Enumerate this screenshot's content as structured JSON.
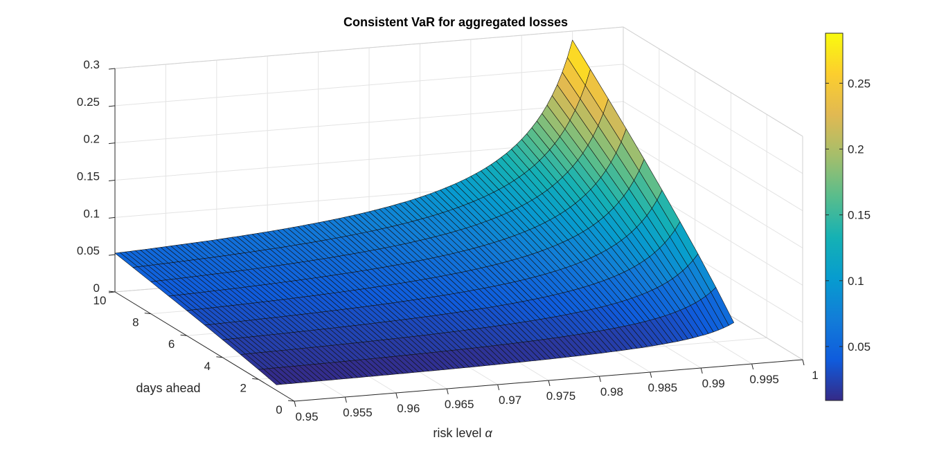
{
  "chart_data": {
    "type": "surface",
    "title": "Consistent VaR for aggregated losses",
    "xlabel": "risk level",
    "xlabel_symbol": "α",
    "ylabel": "days ahead",
    "zlabel": "",
    "xlim": [
      0.95,
      1.0
    ],
    "ylim": [
      0,
      10
    ],
    "zlim": [
      0,
      0.3
    ],
    "x_ticks": [
      "0.95",
      "0.955",
      "0.96",
      "0.965",
      "0.97",
      "0.975",
      "0.98",
      "0.985",
      "0.99",
      "0.995",
      "1"
    ],
    "y_ticks": [
      "0",
      "2",
      "4",
      "6",
      "8",
      "10"
    ],
    "z_ticks": [
      "0",
      "0.05",
      "0.1",
      "0.15",
      "0.2",
      "0.25",
      "0.3"
    ],
    "x_values": [
      0.95,
      0.955,
      0.96,
      0.965,
      0.97,
      0.975,
      0.98,
      0.985,
      0.99,
      0.995
    ],
    "y_values": [
      1,
      2,
      3,
      4,
      5,
      6,
      7,
      8,
      9,
      10
    ],
    "z_corner_values": {
      "x0.95_y1": 0.009,
      "x0.95_y10": 0.052,
      "x0.995_y1": 0.012,
      "x0.995_y10": 0.288
    },
    "colormap": "parula",
    "colorbar": {
      "ticks": [
        "0.05",
        "0.1",
        "0.15",
        "0.2",
        "0.25"
      ],
      "range": [
        0.009,
        0.288
      ]
    },
    "grid": true,
    "view": "3d"
  }
}
